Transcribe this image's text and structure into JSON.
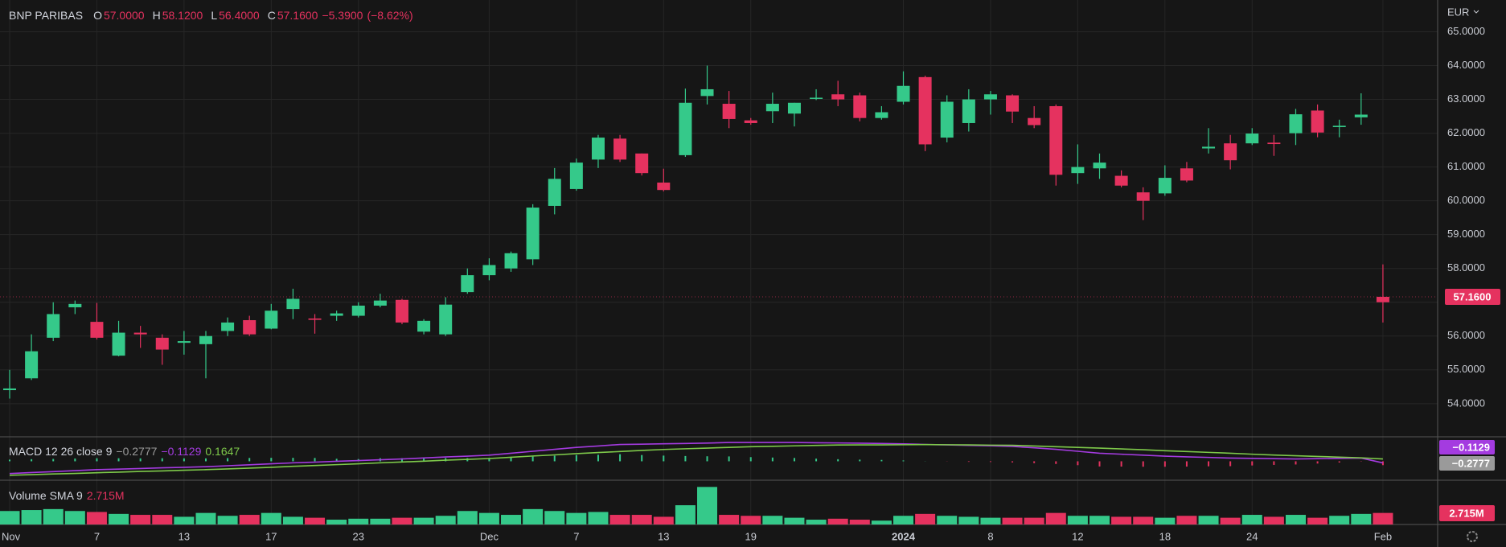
{
  "chart_data": {
    "type": "candlestick",
    "symbol": "BNP PARIBAS",
    "currency": "EUR",
    "ohlc_keys": [
      "O",
      "H",
      "L",
      "C"
    ],
    "ohlc_labels": [
      "57.0000",
      "58.1200",
      "56.4000",
      "57.1600"
    ],
    "change": -5.39,
    "change_label": "−5.3900",
    "change_pct": -8.62,
    "change_pct_label": "(−8.62%)",
    "last_price_label": "57.1600",
    "up_color": "#35c98a",
    "down_color": "#e5325f",
    "categories": [
      "Nov",
      null,
      null,
      null,
      "7",
      null,
      null,
      null,
      "13",
      null,
      null,
      null,
      "17",
      null,
      null,
      null,
      "23",
      null,
      null,
      null,
      null,
      null,
      "Dec",
      null,
      null,
      null,
      "7",
      null,
      null,
      null,
      "13",
      null,
      null,
      null,
      "19",
      null,
      null,
      null,
      null,
      null,
      null,
      "2024",
      null,
      null,
      null,
      "8",
      null,
      null,
      null,
      "12",
      null,
      null,
      null,
      "18",
      null,
      null,
      null,
      "24",
      null,
      null,
      null,
      null,
      null,
      "Feb"
    ],
    "open": [
      54.4,
      54.75,
      55.95,
      56.85,
      56.42,
      55.42,
      56.1,
      55.95,
      55.8,
      55.76,
      56.15,
      56.47,
      56.22,
      56.8,
      56.52,
      56.6,
      56.6,
      56.9,
      57.07,
      56.13,
      56.05,
      57.3,
      57.8,
      58.0,
      58.27,
      59.85,
      60.35,
      61.22,
      61.84,
      61.4,
      60.54,
      61.35,
      63.1,
      62.87,
      62.38,
      62.65,
      62.58,
      63.02,
      63.15,
      63.12,
      62.45,
      62.93,
      63.66,
      61.87,
      62.3,
      63.0,
      63.12,
      62.45,
      62.8,
      60.82,
      60.96,
      60.74,
      60.25,
      60.22,
      60.96,
      61.55,
      61.7,
      61.7,
      61.72,
      62.0,
      62.67,
      62.18,
      62.47,
      57.0
    ],
    "high": [
      55.0,
      56.05,
      57.0,
      57.05,
      56.98,
      56.45,
      56.3,
      56.05,
      56.15,
      56.15,
      56.55,
      56.6,
      56.95,
      57.4,
      56.65,
      56.75,
      57.0,
      57.25,
      57.1,
      56.5,
      57.15,
      58.0,
      58.3,
      58.5,
      59.9,
      60.97,
      61.25,
      61.95,
      61.95,
      61.4,
      60.95,
      63.32,
      64.0,
      63.25,
      62.45,
      63.2,
      62.9,
      63.3,
      63.55,
      63.2,
      62.8,
      63.83,
      63.7,
      63.12,
      63.3,
      63.25,
      63.15,
      62.8,
      62.85,
      61.67,
      61.4,
      60.9,
      60.4,
      61.05,
      61.15,
      62.15,
      61.95,
      62.15,
      61.95,
      62.72,
      62.85,
      62.4,
      63.18,
      58.12
    ],
    "low": [
      54.15,
      54.7,
      55.85,
      56.65,
      55.9,
      55.4,
      55.65,
      55.15,
      55.45,
      54.75,
      56.0,
      56.0,
      56.2,
      56.5,
      56.07,
      56.45,
      56.55,
      56.85,
      56.35,
      56.05,
      56.0,
      57.25,
      57.65,
      57.9,
      58.1,
      59.6,
      60.3,
      60.97,
      61.15,
      60.75,
      60.28,
      61.3,
      62.85,
      62.15,
      62.25,
      62.3,
      62.2,
      62.98,
      62.8,
      62.35,
      62.4,
      62.85,
      61.47,
      61.73,
      62.05,
      62.55,
      62.3,
      62.15,
      60.45,
      60.5,
      60.65,
      60.4,
      59.43,
      60.15,
      60.55,
      61.4,
      60.93,
      61.65,
      61.33,
      61.65,
      61.88,
      61.88,
      62.25,
      56.4
    ],
    "close": [
      54.45,
      55.55,
      56.65,
      56.95,
      55.95,
      56.1,
      56.05,
      55.6,
      55.85,
      56.0,
      56.4,
      56.05,
      56.75,
      57.1,
      56.48,
      56.67,
      56.9,
      57.05,
      56.4,
      56.45,
      56.93,
      57.8,
      58.1,
      58.45,
      59.8,
      60.65,
      61.13,
      61.87,
      61.22,
      60.82,
      60.32,
      62.9,
      63.3,
      62.42,
      62.3,
      62.87,
      62.9,
      63.05,
      63.0,
      62.45,
      62.62,
      63.4,
      61.67,
      62.93,
      63.0,
      63.15,
      62.64,
      62.24,
      60.77,
      61.0,
      61.13,
      60.45,
      60.0,
      60.68,
      60.6,
      61.6,
      61.2,
      61.99,
      61.68,
      62.56,
      62.02,
      62.22,
      62.55,
      57.16
    ],
    "ylim": [
      53.02,
      65.94
    ],
    "yticks": [
      {
        "value": 54,
        "label": "54.0000"
      },
      {
        "value": 55,
        "label": "55.0000"
      },
      {
        "value": 56,
        "label": "56.0000"
      },
      {
        "value": 57,
        "label": "57.0000"
      },
      {
        "value": 58,
        "label": "58.0000"
      },
      {
        "value": 59,
        "label": "59.0000"
      },
      {
        "value": 60,
        "label": "60.0000"
      },
      {
        "value": 61,
        "label": "61.0000"
      },
      {
        "value": 62,
        "label": "62.0000"
      },
      {
        "value": 63,
        "label": "63.0000"
      },
      {
        "value": 64,
        "label": "64.0000"
      },
      {
        "value": 65,
        "label": "65.0000"
      }
    ],
    "grid": true,
    "macd": {
      "title": "MACD 12 26 close 9",
      "ylim": [
        -1.36,
        1.76
      ],
      "histogram": {
        "values": [
          0.12,
          0.15,
          0.17,
          0.2,
          0.22,
          0.22,
          0.21,
          0.22,
          0.21,
          0.21,
          0.23,
          0.24,
          0.25,
          0.25,
          0.24,
          0.18,
          0.16,
          0.22,
          0.22,
          0.23,
          0.23,
          0.23,
          0.24,
          0.29,
          0.34,
          0.4,
          0.45,
          0.47,
          0.51,
          0.45,
          0.41,
          0.38,
          0.36,
          0.35,
          0.3,
          0.27,
          0.24,
          0.19,
          0.15,
          0.12,
          0.1,
          0.06,
          0.01,
          -0.01,
          -0.04,
          -0.05,
          -0.08,
          -0.13,
          -0.19,
          -0.28,
          -0.37,
          -0.38,
          -0.39,
          -0.39,
          -0.38,
          -0.36,
          -0.35,
          -0.3,
          -0.26,
          -0.23,
          -0.16,
          -0.09,
          -0.02,
          -0.2777
        ],
        "color": "#9a9a9a",
        "last_label": "−0.2777"
      },
      "macd": {
        "values": [
          -0.88,
          -0.81,
          -0.74,
          -0.67,
          -0.6,
          -0.56,
          -0.52,
          -0.47,
          -0.43,
          -0.39,
          -0.32,
          -0.25,
          -0.18,
          -0.11,
          -0.06,
          0.0,
          0.05,
          0.11,
          0.17,
          0.24,
          0.31,
          0.37,
          0.44,
          0.58,
          0.72,
          0.86,
          1.0,
          1.1,
          1.21,
          1.23,
          1.26,
          1.28,
          1.31,
          1.35,
          1.35,
          1.35,
          1.35,
          1.33,
          1.32,
          1.3,
          1.28,
          1.25,
          1.21,
          1.18,
          1.14,
          1.11,
          1.07,
          0.97,
          0.86,
          0.72,
          0.58,
          0.51,
          0.44,
          0.37,
          0.32,
          0.28,
          0.23,
          0.21,
          0.19,
          0.17,
          0.19,
          0.21,
          0.23,
          -0.1129
        ],
        "color": "#a43be0",
        "last_label": "−0.1129"
      },
      "signal": {
        "values": [
          -1.0,
          -0.96,
          -0.91,
          -0.87,
          -0.82,
          -0.78,
          -0.73,
          -0.69,
          -0.64,
          -0.6,
          -0.55,
          -0.49,
          -0.43,
          -0.36,
          -0.3,
          -0.24,
          -0.18,
          -0.11,
          -0.05,
          0.01,
          0.08,
          0.14,
          0.2,
          0.29,
          0.38,
          0.46,
          0.55,
          0.63,
          0.7,
          0.78,
          0.85,
          0.9,
          0.95,
          1.0,
          1.05,
          1.08,
          1.11,
          1.14,
          1.17,
          1.18,
          1.18,
          1.19,
          1.2,
          1.19,
          1.18,
          1.16,
          1.15,
          1.1,
          1.05,
          1.0,
          0.95,
          0.89,
          0.83,
          0.76,
          0.7,
          0.64,
          0.58,
          0.51,
          0.45,
          0.4,
          0.35,
          0.3,
          0.25,
          0.1647
        ],
        "color": "#7ec94a",
        "last_label": "0.1647"
      }
    },
    "volume": {
      "title": "Volume SMA 9",
      "last_label": "2.715M",
      "ylim": [
        0,
        10400000
      ],
      "values": [
        3168000,
        3394000,
        3620000,
        3168000,
        2941000,
        2489000,
        2263000,
        2263000,
        1810000,
        2715000,
        2036000,
        2263000,
        2715000,
        1810000,
        1584000,
        1131000,
        1358000,
        1358000,
        1584000,
        1584000,
        2036000,
        3168000,
        2715000,
        2263000,
        3620000,
        3168000,
        2715000,
        2941000,
        2263000,
        2263000,
        1810000,
        4525000,
        8824000,
        2263000,
        2036000,
        2036000,
        1584000,
        1131000,
        1358000,
        1131000,
        905000,
        2036000,
        2489000,
        2036000,
        1810000,
        1584000,
        1584000,
        1584000,
        2715000,
        2036000,
        2036000,
        1810000,
        1810000,
        1584000,
        2036000,
        2036000,
        1584000,
        2263000,
        1810000,
        2263000,
        1584000,
        2036000,
        2489000,
        2715000
      ]
    }
  }
}
